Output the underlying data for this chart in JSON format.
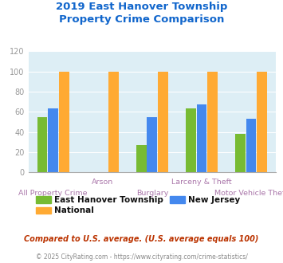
{
  "title": "2019 East Hanover Township\nProperty Crime Comparison",
  "categories": [
    "All Property Crime",
    "Arson",
    "Burglary",
    "Larceny & Theft",
    "Motor Vehicle Theft"
  ],
  "series": {
    "East Hanover Township": [
      55,
      0,
      27,
      63,
      38
    ],
    "New Jersey": [
      63,
      0,
      55,
      67,
      53
    ],
    "National": [
      100,
      100,
      100,
      100,
      100
    ]
  },
  "colors": {
    "East Hanover Township": "#77bb33",
    "New Jersey": "#4488ee",
    "National": "#ffaa33"
  },
  "ylim": [
    0,
    120
  ],
  "yticks": [
    0,
    20,
    40,
    60,
    80,
    100,
    120
  ],
  "xlabel_color": "#aa77aa",
  "title_color": "#1166cc",
  "plot_bg": "#ddeef5",
  "footer_text": "Compared to U.S. average. (U.S. average equals 100)",
  "footer_color": "#bb3300",
  "copyright_text": "© 2025 CityRating.com - https://www.cityrating.com/crime-statistics/",
  "copyright_color": "#888888",
  "bar_width": 0.22
}
